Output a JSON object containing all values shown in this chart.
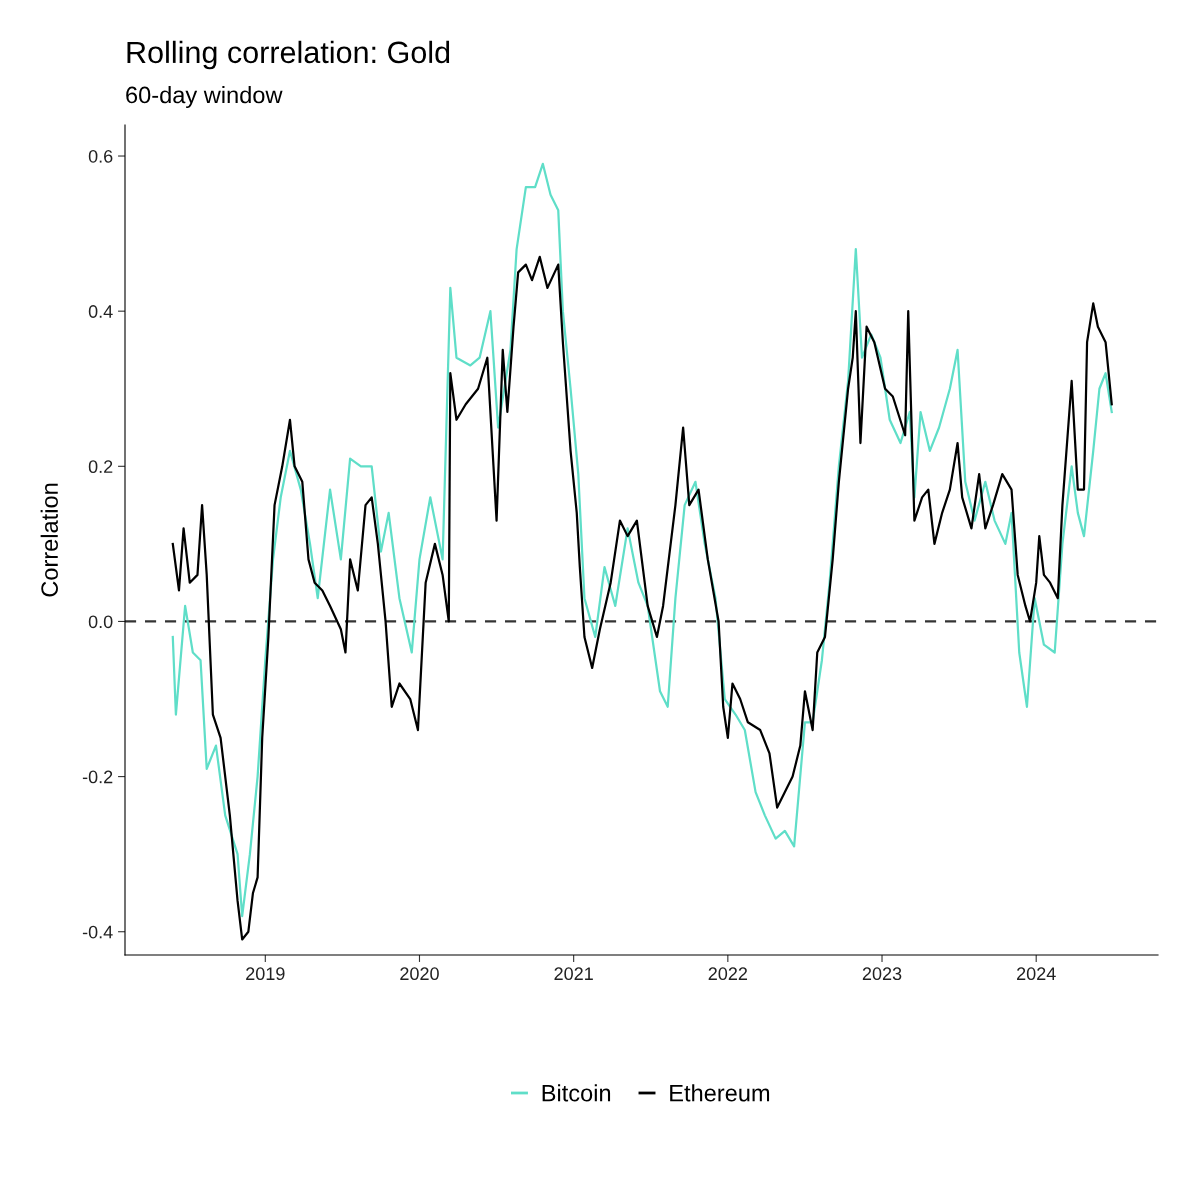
{
  "chart_data": {
    "type": "line",
    "title": "Rolling correlation: Gold",
    "subtitle": "60-day window",
    "ylabel": "Correlation",
    "xlim": [
      2018.09,
      2024.79
    ],
    "ylim": [
      -0.43,
      0.64
    ],
    "xticks": [
      2019,
      2020,
      2021,
      2022,
      2023,
      2024
    ],
    "yticks": [
      -0.4,
      -0.2,
      {
        "value": 0,
        "label": "0.0"
      },
      0.2,
      0.4,
      0.6
    ],
    "grid": false,
    "legend": "bottom",
    "line_style": "solid",
    "marker": "none",
    "ref_lines": [
      {
        "axis": "y",
        "value": 0,
        "line_style": "dashed",
        "color": "#333333"
      }
    ],
    "series": [
      {
        "name": "Bitcoin",
        "color": "#5fdec8",
        "x": [
          2018.4,
          2018.42,
          2018.48,
          2018.53,
          2018.58,
          2018.62,
          2018.68,
          2018.74,
          2018.82,
          2018.85,
          2018.9,
          2018.95,
          2019.0,
          2019.05,
          2019.1,
          2019.16,
          2019.23,
          2019.29,
          2019.34,
          2019.42,
          2019.49,
          2019.55,
          2019.62,
          2019.69,
          2019.75,
          2019.8,
          2019.87,
          2019.95,
          2020.0,
          2020.07,
          2020.15,
          2020.2,
          2020.24,
          2020.33,
          2020.39,
          2020.46,
          2020.51,
          2020.59,
          2020.63,
          2020.69,
          2020.75,
          2020.8,
          2020.85,
          2020.9,
          2020.93,
          2020.98,
          2021.03,
          2021.07,
          2021.14,
          2021.2,
          2021.27,
          2021.35,
          2021.42,
          2021.48,
          2021.56,
          2021.61,
          2021.66,
          2021.72,
          2021.79,
          2021.85,
          2021.92,
          2021.98,
          2022.05,
          2022.11,
          2022.18,
          2022.24,
          2022.31,
          2022.37,
          2022.43,
          2022.5,
          2022.55,
          2022.61,
          2022.66,
          2022.72,
          2022.78,
          2022.83,
          2022.87,
          2022.93,
          2022.99,
          2023.05,
          2023.12,
          2023.18,
          2023.21,
          2023.25,
          2023.31,
          2023.37,
          2023.44,
          2023.49,
          2023.54,
          2023.6,
          2023.67,
          2023.73,
          2023.8,
          2023.84,
          2023.89,
          2023.94,
          2023.99,
          2024.05,
          2024.12,
          2024.17,
          2024.23,
          2024.27,
          2024.31,
          2024.37,
          2024.41,
          2024.45,
          2024.49
        ],
        "values": [
          -0.02,
          -0.12,
          0.02,
          -0.04,
          -0.05,
          -0.19,
          -0.16,
          -0.25,
          -0.3,
          -0.38,
          -0.3,
          -0.2,
          -0.05,
          0.08,
          0.16,
          0.22,
          0.17,
          0.1,
          0.03,
          0.17,
          0.08,
          0.21,
          0.2,
          0.2,
          0.09,
          0.14,
          0.03,
          -0.04,
          0.08,
          0.16,
          0.08,
          0.43,
          0.34,
          0.33,
          0.34,
          0.4,
          0.25,
          0.35,
          0.48,
          0.56,
          0.56,
          0.59,
          0.55,
          0.53,
          0.4,
          0.3,
          0.19,
          0.03,
          -0.02,
          0.07,
          0.02,
          0.12,
          0.05,
          0.02,
          -0.09,
          -0.11,
          0.03,
          0.15,
          0.18,
          0.1,
          0.03,
          -0.1,
          -0.12,
          -0.14,
          -0.22,
          -0.25,
          -0.28,
          -0.27,
          -0.29,
          -0.13,
          -0.13,
          -0.05,
          0.05,
          0.2,
          0.31,
          0.48,
          0.34,
          0.37,
          0.34,
          0.26,
          0.23,
          0.27,
          0.16,
          0.27,
          0.22,
          0.25,
          0.3,
          0.35,
          0.18,
          0.13,
          0.18,
          0.13,
          0.1,
          0.14,
          -0.04,
          -0.11,
          0.03,
          -0.03,
          -0.04,
          0.1,
          0.2,
          0.14,
          0.11,
          0.22,
          0.3,
          0.32,
          0.27
        ]
      },
      {
        "name": "Ethereum",
        "color": "#000000",
        "x": [
          2018.4,
          2018.44,
          2018.47,
          2018.51,
          2018.56,
          2018.59,
          2018.62,
          2018.66,
          2018.71,
          2018.77,
          2018.82,
          2018.85,
          2018.89,
          2018.92,
          2018.95,
          2018.98,
          2019.02,
          2019.06,
          2019.11,
          2019.16,
          2019.19,
          2019.24,
          2019.28,
          2019.32,
          2019.37,
          2019.42,
          2019.49,
          2019.52,
          2019.55,
          2019.6,
          2019.65,
          2019.69,
          2019.73,
          2019.78,
          2019.82,
          2019.87,
          2019.94,
          2019.99,
          2020.04,
          2020.1,
          2020.15,
          2020.19,
          2020.2,
          2020.24,
          2020.3,
          2020.38,
          2020.44,
          2020.48,
          2020.5,
          2020.54,
          2020.57,
          2020.61,
          2020.64,
          2020.69,
          2020.73,
          2020.78,
          2020.83,
          2020.9,
          2020.93,
          2020.98,
          2021.02,
          2021.04,
          2021.07,
          2021.12,
          2021.17,
          2021.24,
          2021.3,
          2021.35,
          2021.41,
          2021.48,
          2021.54,
          2021.58,
          2021.66,
          2021.71,
          2021.75,
          2021.81,
          2021.87,
          2021.94,
          2021.97,
          2022.0,
          2022.03,
          2022.08,
          2022.13,
          2022.21,
          2022.27,
          2022.32,
          2022.37,
          2022.42,
          2022.47,
          2022.5,
          2022.55,
          2022.58,
          2022.63,
          2022.68,
          2022.72,
          2022.78,
          2022.81,
          2022.83,
          2022.86,
          2022.9,
          2022.95,
          2023.02,
          2023.07,
          2023.15,
          2023.17,
          2023.21,
          2023.26,
          2023.3,
          2023.34,
          2023.39,
          2023.44,
          2023.49,
          2023.52,
          2023.58,
          2023.63,
          2023.67,
          2023.72,
          2023.78,
          2023.84,
          2023.88,
          2023.93,
          2023.96,
          2024.0,
          2024.02,
          2024.05,
          2024.09,
          2024.14,
          2024.17,
          2024.23,
          2024.27,
          2024.31,
          2024.33,
          2024.37,
          2024.4,
          2024.45,
          2024.49
        ],
        "values": [
          0.1,
          0.04,
          0.12,
          0.05,
          0.06,
          0.15,
          0.06,
          -0.12,
          -0.15,
          -0.25,
          -0.36,
          -0.41,
          -0.4,
          -0.35,
          -0.33,
          -0.15,
          -0.02,
          0.15,
          0.2,
          0.26,
          0.2,
          0.18,
          0.08,
          0.05,
          0.04,
          0.02,
          -0.01,
          -0.04,
          0.08,
          0.04,
          0.15,
          0.16,
          0.1,
          0.0,
          -0.11,
          -0.08,
          -0.1,
          -0.14,
          0.05,
          0.1,
          0.06,
          0.0,
          0.32,
          0.26,
          0.28,
          0.3,
          0.34,
          0.2,
          0.13,
          0.35,
          0.27,
          0.38,
          0.45,
          0.46,
          0.44,
          0.47,
          0.43,
          0.46,
          0.36,
          0.22,
          0.14,
          0.07,
          -0.02,
          -0.06,
          -0.01,
          0.05,
          0.13,
          0.11,
          0.13,
          0.02,
          -0.02,
          0.02,
          0.15,
          0.25,
          0.15,
          0.17,
          0.08,
          0.0,
          -0.11,
          -0.15,
          -0.08,
          -0.1,
          -0.13,
          -0.14,
          -0.17,
          -0.24,
          -0.22,
          -0.2,
          -0.16,
          -0.09,
          -0.14,
          -0.04,
          -0.02,
          0.08,
          0.18,
          0.3,
          0.34,
          0.4,
          0.23,
          0.38,
          0.36,
          0.3,
          0.29,
          0.24,
          0.4,
          0.13,
          0.16,
          0.17,
          0.1,
          0.14,
          0.17,
          0.23,
          0.16,
          0.12,
          0.19,
          0.12,
          0.15,
          0.19,
          0.17,
          0.06,
          0.02,
          0.0,
          0.05,
          0.11,
          0.06,
          0.05,
          0.03,
          0.15,
          0.31,
          0.17,
          0.17,
          0.36,
          0.41,
          0.38,
          0.36,
          0.28
        ]
      }
    ]
  }
}
